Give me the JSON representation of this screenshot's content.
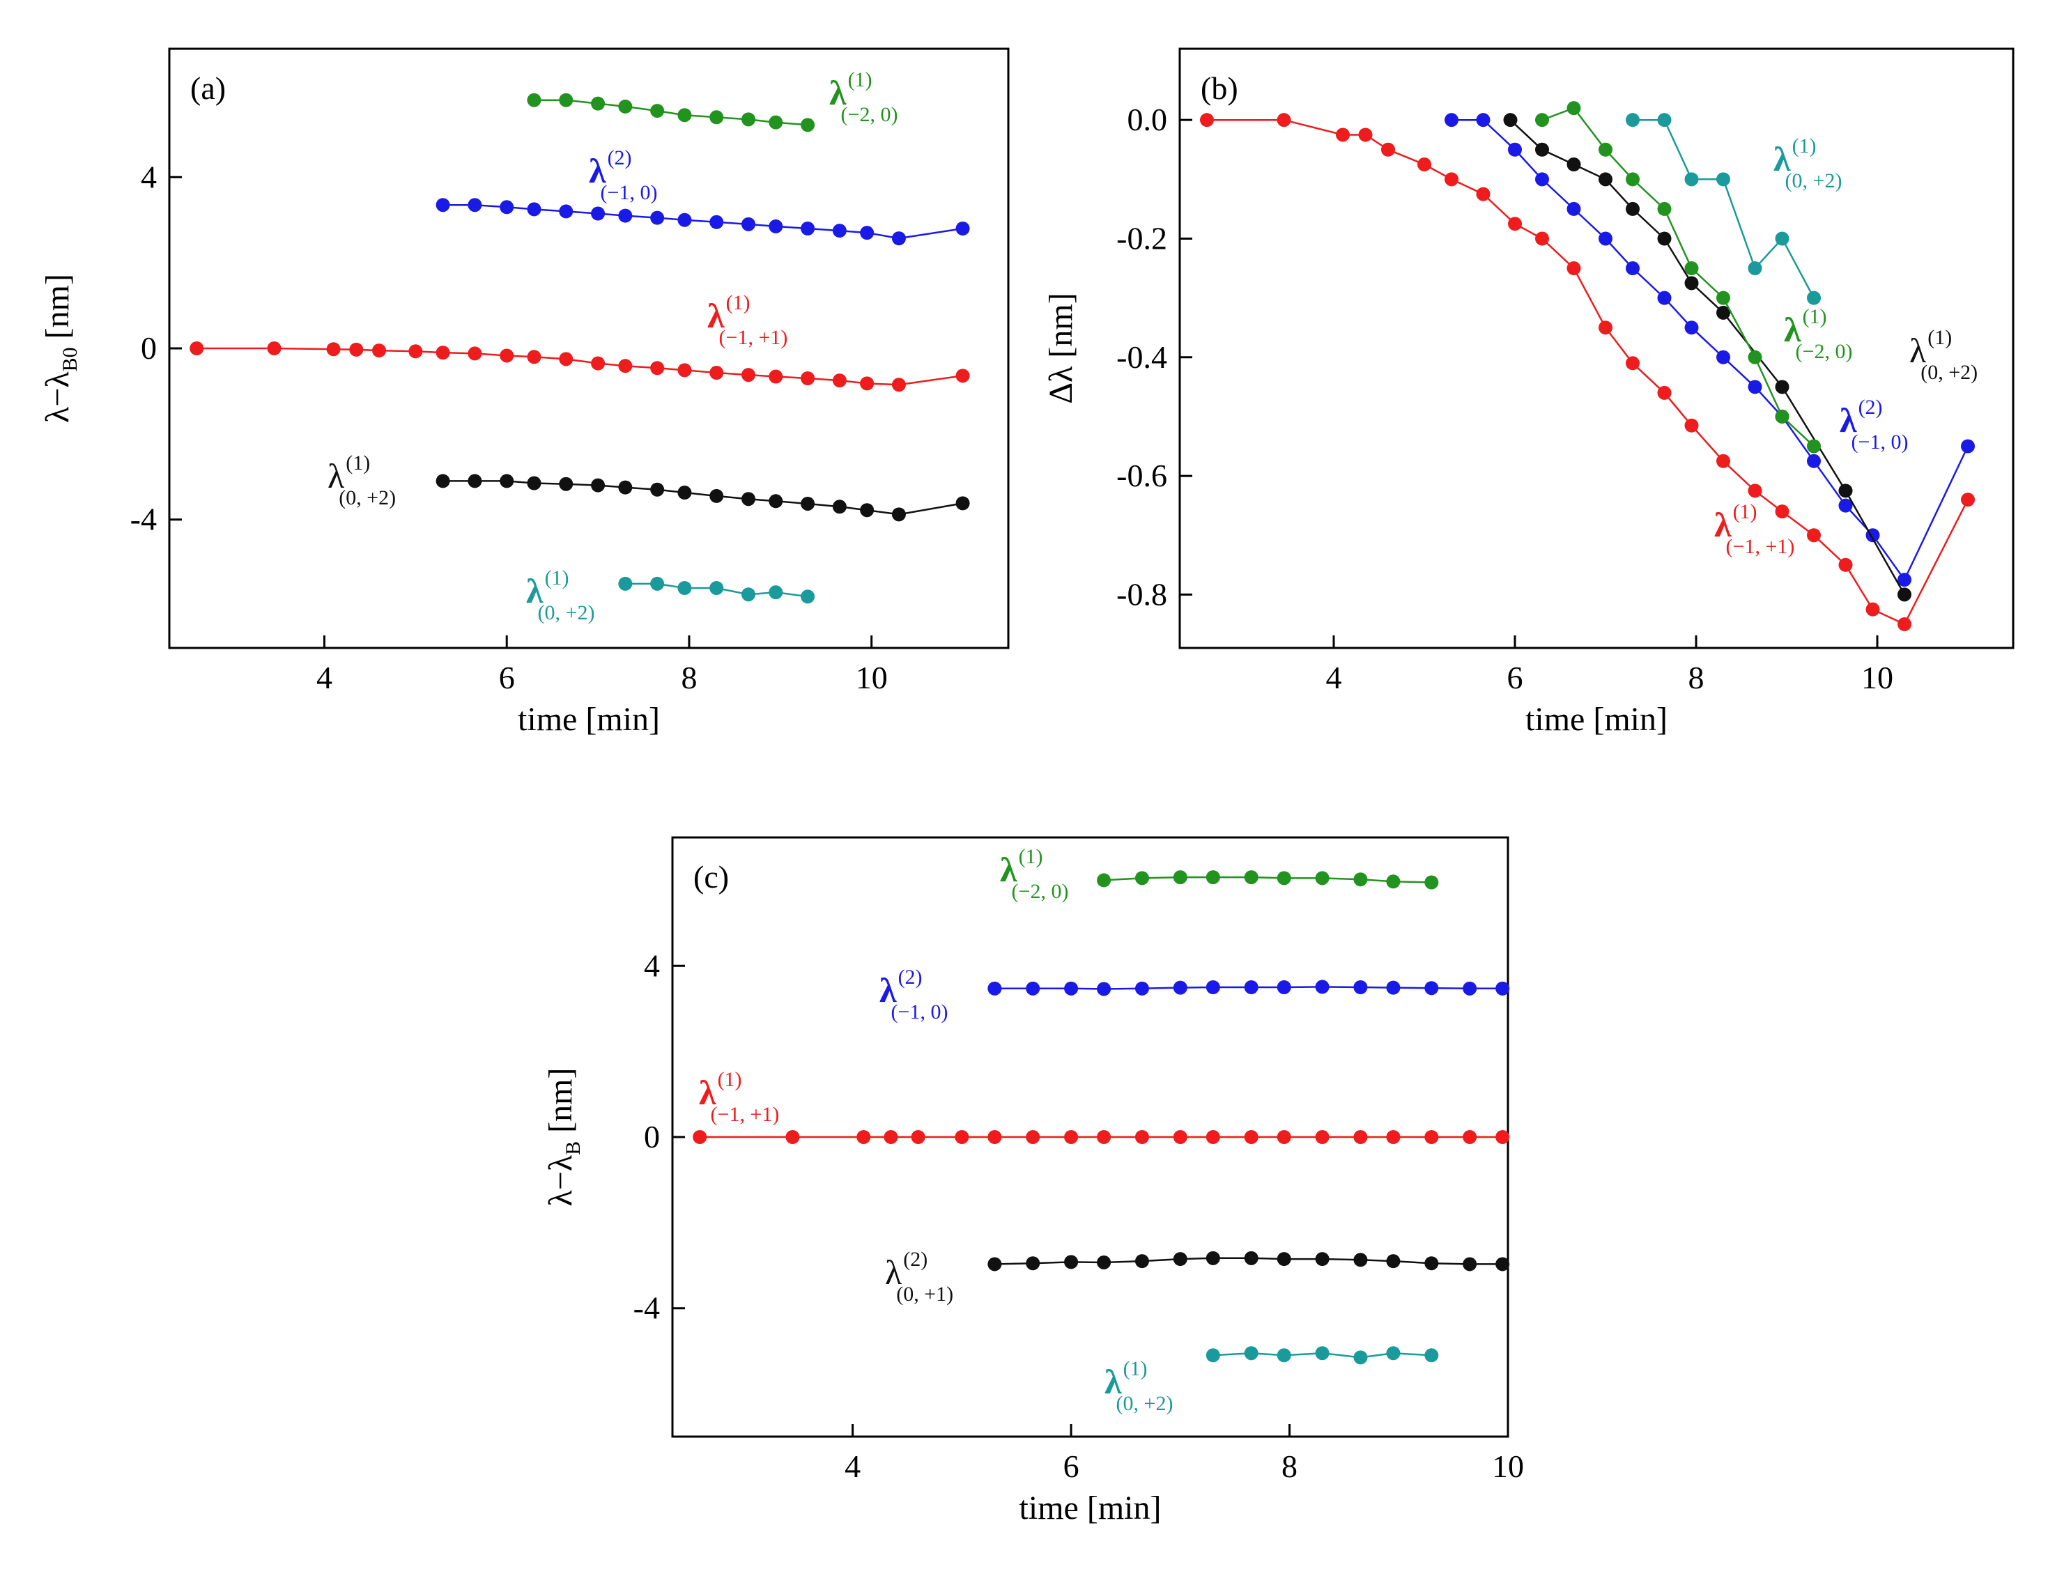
{
  "chart_data": [
    {
      "id": "a",
      "type": "line",
      "panel_label": "(a)",
      "xlabel": "time [min]",
      "ylabel_main": "λ−λ",
      "ylabel_sub": "B0",
      "ylabel_unit": " [nm]",
      "xlim": [
        2.3,
        11.5
      ],
      "ylim": [
        -7,
        7
      ],
      "xticks": [
        4,
        6,
        8,
        10
      ],
      "yticks": [
        4,
        0,
        -4
      ],
      "ytick_labels": [
        "4",
        "0",
        "-4"
      ],
      "series": [
        {
          "color": "#22931f",
          "label": {
            "base": "λ",
            "sup": "(1)",
            "sub": "(−2, 0)",
            "bold": true
          },
          "x": [
            6.3,
            6.65,
            7.0,
            7.3,
            7.65,
            7.95,
            8.3,
            8.65,
            8.95,
            9.3
          ],
          "y": [
            5.8,
            5.8,
            5.72,
            5.65,
            5.55,
            5.45,
            5.4,
            5.35,
            5.28,
            5.22
          ]
        },
        {
          "color": "#1a1ae6",
          "label": {
            "base": "λ",
            "sup": "(2)",
            "sub": "(−1, 0)",
            "bold": true
          },
          "x": [
            5.3,
            5.65,
            6.0,
            6.3,
            6.65,
            7.0,
            7.3,
            7.65,
            7.95,
            8.3,
            8.65,
            8.95,
            9.3,
            9.65,
            9.95,
            10.3,
            11.0
          ],
          "y": [
            3.35,
            3.35,
            3.3,
            3.25,
            3.2,
            3.15,
            3.1,
            3.05,
            3.0,
            2.95,
            2.9,
            2.85,
            2.8,
            2.75,
            2.7,
            2.57,
            2.8
          ]
        },
        {
          "color": "#ee1c1c",
          "label": {
            "base": "λ",
            "sup": "(1)",
            "sub": "(−1, +1)",
            "bold": true
          },
          "x": [
            2.6,
            3.45,
            4.1,
            4.35,
            4.6,
            5.0,
            5.3,
            5.65,
            6.0,
            6.3,
            6.65,
            7.0,
            7.3,
            7.65,
            7.95,
            8.3,
            8.65,
            8.95,
            9.3,
            9.65,
            9.95,
            10.3,
            11.0
          ],
          "y": [
            0,
            0,
            -0.02,
            -0.03,
            -0.05,
            -0.07,
            -0.1,
            -0.12,
            -0.17,
            -0.2,
            -0.25,
            -0.35,
            -0.41,
            -0.46,
            -0.51,
            -0.57,
            -0.62,
            -0.66,
            -0.7,
            -0.75,
            -0.82,
            -0.85,
            -0.64
          ]
        },
        {
          "color": "#111111",
          "label": {
            "base": "λ",
            "sup": "(1)",
            "sub": "(0, +2)",
            "bold": false
          },
          "x": [
            5.3,
            5.65,
            6.0,
            6.3,
            6.65,
            7.0,
            7.3,
            7.65,
            7.95,
            8.3,
            8.65,
            8.95,
            9.3,
            9.65,
            9.95,
            10.3,
            11.0
          ],
          "y": [
            -3.1,
            -3.1,
            -3.1,
            -3.15,
            -3.17,
            -3.2,
            -3.25,
            -3.3,
            -3.37,
            -3.45,
            -3.52,
            -3.57,
            -3.63,
            -3.7,
            -3.78,
            -3.88,
            -3.62
          ]
        },
        {
          "color": "#1a9a9a",
          "label": {
            "base": "λ",
            "sup": "(1)",
            "sub": "(0, +2)",
            "bold": true
          },
          "x": [
            7.3,
            7.65,
            7.95,
            8.3,
            8.65,
            8.95,
            9.3
          ],
          "y": [
            -5.5,
            -5.5,
            -5.6,
            -5.6,
            -5.75,
            -5.7,
            -5.8
          ]
        }
      ]
    },
    {
      "id": "b",
      "type": "line",
      "panel_label": "(b)",
      "xlabel": "time [min]",
      "ylabel_main": "Δλ",
      "ylabel_sub": "",
      "ylabel_unit": " [nm]",
      "xlim": [
        2.3,
        11.5
      ],
      "ylim": [
        -0.89,
        0.12
      ],
      "xticks": [
        4,
        6,
        8,
        10
      ],
      "yticks": [
        0.0,
        -0.2,
        -0.4,
        -0.6,
        -0.8
      ],
      "ytick_labels": [
        "0.0",
        "-0.2",
        "-0.4",
        "-0.6",
        "-0.8"
      ],
      "series": [
        {
          "color": "#ee1c1c",
          "label": {
            "base": "λ",
            "sup": "(1)",
            "sub": "(−1, +1)",
            "bold": true
          },
          "x": [
            2.6,
            3.45,
            4.1,
            4.35,
            4.6,
            5.0,
            5.3,
            5.65,
            6.0,
            6.3,
            6.65,
            7.0,
            7.3,
            7.65,
            7.95,
            8.3,
            8.65,
            8.95,
            9.3,
            9.65,
            9.95,
            10.3,
            11.0
          ],
          "y": [
            0,
            0,
            -0.025,
            -0.025,
            -0.05,
            -0.075,
            -0.1,
            -0.125,
            -0.175,
            -0.2,
            -0.25,
            -0.35,
            -0.41,
            -0.46,
            -0.515,
            -0.575,
            -0.625,
            -0.66,
            -0.7,
            -0.75,
            -0.825,
            -0.85,
            -0.64
          ]
        },
        {
          "color": "#1a1ae6",
          "label": {
            "base": "λ",
            "sup": "(2)",
            "sub": "(−1, 0)",
            "bold": true
          },
          "x": [
            5.3,
            5.65,
            6.0,
            6.3,
            6.65,
            7.0,
            7.3,
            7.65,
            7.95,
            8.3,
            8.65,
            8.95,
            9.3,
            9.65,
            9.95,
            10.3,
            11.0
          ],
          "y": [
            0,
            0,
            -0.05,
            -0.1,
            -0.15,
            -0.2,
            -0.25,
            -0.3,
            -0.35,
            -0.4,
            -0.45,
            -0.5,
            -0.575,
            -0.65,
            -0.7,
            -0.775,
            -0.55
          ]
        },
        {
          "color": "#111111",
          "label": {
            "base": "λ",
            "sup": "(1)",
            "sub": "(0, +2)",
            "bold": false
          },
          "x": [
            5.95,
            6.3,
            6.65,
            7.0,
            7.3,
            7.65,
            7.95,
            8.3,
            8.95,
            9.65,
            10.3
          ],
          "y": [
            0,
            -0.05,
            -0.075,
            -0.1,
            -0.15,
            -0.2,
            -0.275,
            -0.325,
            -0.45,
            -0.625,
            -0.8
          ]
        },
        {
          "color": "#22931f",
          "label": {
            "base": "λ",
            "sup": "(1)",
            "sub": "(−2, 0)",
            "bold": true
          },
          "x": [
            6.3,
            6.65,
            7.0,
            7.3,
            7.65,
            7.95,
            8.3,
            8.65,
            8.95,
            9.3
          ],
          "y": [
            0,
            0.02,
            -0.05,
            -0.1,
            -0.15,
            -0.25,
            -0.3,
            -0.4,
            -0.5,
            -0.55
          ]
        },
        {
          "color": "#1a9a9a",
          "label": {
            "base": "λ",
            "sup": "(1)",
            "sub": "(0, +2)",
            "bold": true
          },
          "x": [
            7.3,
            7.65,
            7.95,
            8.3,
            8.65,
            8.95,
            9.3
          ],
          "y": [
            0,
            0,
            -0.1,
            -0.1,
            -0.25,
            -0.2,
            -0.3
          ]
        }
      ]
    },
    {
      "id": "c",
      "type": "line",
      "panel_label": "(c)",
      "xlabel": "time [min]",
      "ylabel_main": "λ−λ",
      "ylabel_sub": "B",
      "ylabel_unit": " [nm]",
      "xlim": [
        2.35,
        10.0
      ],
      "ylim": [
        -7,
        7
      ],
      "xticks": [
        4,
        6,
        8,
        10
      ],
      "yticks": [
        4,
        0,
        -4
      ],
      "ytick_labels": [
        "4",
        "0",
        "-4"
      ],
      "series": [
        {
          "color": "#22931f",
          "label": {
            "base": "λ",
            "sup": "(1)",
            "sub": "(−2, 0)",
            "bold": true
          },
          "x": [
            6.3,
            6.65,
            7.0,
            7.3,
            7.65,
            7.95,
            8.3,
            8.65,
            8.95,
            9.3
          ],
          "y": [
            6.0,
            6.05,
            6.07,
            6.07,
            6.07,
            6.05,
            6.05,
            6.02,
            5.97,
            5.95
          ]
        },
        {
          "color": "#1a1ae6",
          "label": {
            "base": "λ",
            "sup": "(2)",
            "sub": "(−1, 0)",
            "bold": true
          },
          "x": [
            5.3,
            5.65,
            6.0,
            6.3,
            6.65,
            7.0,
            7.3,
            7.65,
            7.95,
            8.3,
            8.65,
            8.95,
            9.3,
            9.65,
            9.95
          ],
          "y": [
            3.47,
            3.47,
            3.47,
            3.46,
            3.47,
            3.49,
            3.5,
            3.5,
            3.5,
            3.51,
            3.5,
            3.49,
            3.48,
            3.47,
            3.47
          ]
        },
        {
          "color": "#ee1c1c",
          "label": {
            "base": "λ",
            "sup": "(1)",
            "sub": "(−1, +1)",
            "bold": true
          },
          "x": [
            2.6,
            3.45,
            4.1,
            4.35,
            4.6,
            5.0,
            5.3,
            5.65,
            6.0,
            6.3,
            6.65,
            7.0,
            7.3,
            7.65,
            7.95,
            8.3,
            8.65,
            8.95,
            9.3,
            9.65,
            9.95
          ],
          "y": [
            0,
            0,
            0,
            0,
            0,
            0,
            0,
            0,
            0,
            0,
            0,
            0,
            0,
            0,
            0,
            0,
            0,
            0,
            0,
            0,
            0
          ]
        },
        {
          "color": "#111111",
          "label": {
            "base": "λ",
            "sup": "(2)",
            "sub": "(0, +1)",
            "bold": false
          },
          "x": [
            5.3,
            5.65,
            6.0,
            6.3,
            6.65,
            7.0,
            7.3,
            7.65,
            7.95,
            8.3,
            8.65,
            8.95,
            9.3,
            9.65,
            9.95
          ],
          "y": [
            -2.97,
            -2.95,
            -2.92,
            -2.93,
            -2.9,
            -2.85,
            -2.83,
            -2.83,
            -2.85,
            -2.85,
            -2.87,
            -2.9,
            -2.95,
            -2.97,
            -2.97
          ]
        },
        {
          "color": "#1a9a9a",
          "label": {
            "base": "λ",
            "sup": "(1)",
            "sub": "(0, +2)",
            "bold": true
          },
          "x": [
            7.3,
            7.65,
            7.95,
            8.3,
            8.65,
            8.95,
            9.3
          ],
          "y": [
            -5.1,
            -5.05,
            -5.1,
            -5.05,
            -5.15,
            -5.05,
            -5.1
          ]
        }
      ]
    }
  ]
}
